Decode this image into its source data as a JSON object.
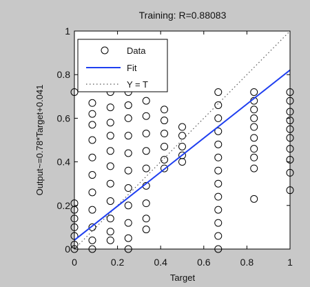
{
  "chart_data": {
    "type": "scatter",
    "title": "Training: R=0.88083",
    "xlabel": "Target",
    "ylabel": "Output~=0.78*Target+0.041",
    "xlim": [
      0,
      1
    ],
    "ylim": [
      0,
      1
    ],
    "x_ticks": [
      "0",
      "0.2",
      "0.4",
      "0.6",
      "0.8",
      "1"
    ],
    "y_ticks": [
      "0",
      "0.2",
      "0.4",
      "0.6",
      "0.8",
      "1"
    ],
    "x_tick_values": [
      0,
      0.2,
      0.4,
      0.6,
      0.8,
      1
    ],
    "y_tick_values": [
      0,
      0.2,
      0.4,
      0.6,
      0.8,
      1
    ],
    "grid": false,
    "legend_position": "top-left",
    "legend": {
      "data_label": "Data",
      "fit_label": "Fit",
      "identity_label": "Y = T"
    },
    "fit_line": {
      "slope": 0.78,
      "intercept": 0.041,
      "color": "#1f3ff0"
    },
    "identity_line": {
      "slope": 1,
      "intercept": 0,
      "color": "#555555"
    },
    "series": [
      {
        "name": "Data",
        "marker": "circle-open",
        "color": "#000000",
        "points": [
          {
            "x": 0.0,
            "y": 0.72
          },
          {
            "x": 0.0,
            "y": 0.21
          },
          {
            "x": 0.0,
            "y": 0.18
          },
          {
            "x": 0.0,
            "y": 0.14
          },
          {
            "x": 0.0,
            "y": 0.1
          },
          {
            "x": 0.0,
            "y": 0.06
          },
          {
            "x": 0.0,
            "y": 0.02
          },
          {
            "x": 0.0,
            "y": 0.0
          },
          {
            "x": 0.083,
            "y": 0.67
          },
          {
            "x": 0.083,
            "y": 0.62
          },
          {
            "x": 0.083,
            "y": 0.57
          },
          {
            "x": 0.083,
            "y": 0.5
          },
          {
            "x": 0.083,
            "y": 0.42
          },
          {
            "x": 0.083,
            "y": 0.34
          },
          {
            "x": 0.083,
            "y": 0.26
          },
          {
            "x": 0.083,
            "y": 0.18
          },
          {
            "x": 0.083,
            "y": 0.1
          },
          {
            "x": 0.083,
            "y": 0.04
          },
          {
            "x": 0.083,
            "y": 0.0
          },
          {
            "x": 0.167,
            "y": 0.72
          },
          {
            "x": 0.167,
            "y": 0.65
          },
          {
            "x": 0.167,
            "y": 0.58
          },
          {
            "x": 0.167,
            "y": 0.52
          },
          {
            "x": 0.167,
            "y": 0.45
          },
          {
            "x": 0.167,
            "y": 0.38
          },
          {
            "x": 0.167,
            "y": 0.3
          },
          {
            "x": 0.167,
            "y": 0.22
          },
          {
            "x": 0.167,
            "y": 0.14
          },
          {
            "x": 0.167,
            "y": 0.08
          },
          {
            "x": 0.167,
            "y": 0.04
          },
          {
            "x": 0.25,
            "y": 0.72
          },
          {
            "x": 0.25,
            "y": 0.66
          },
          {
            "x": 0.25,
            "y": 0.6
          },
          {
            "x": 0.25,
            "y": 0.52
          },
          {
            "x": 0.25,
            "y": 0.44
          },
          {
            "x": 0.25,
            "y": 0.36
          },
          {
            "x": 0.25,
            "y": 0.28
          },
          {
            "x": 0.25,
            "y": 0.2
          },
          {
            "x": 0.25,
            "y": 0.12
          },
          {
            "x": 0.25,
            "y": 0.05
          },
          {
            "x": 0.25,
            "y": 0.0
          },
          {
            "x": 0.333,
            "y": 0.68
          },
          {
            "x": 0.333,
            "y": 0.61
          },
          {
            "x": 0.333,
            "y": 0.53
          },
          {
            "x": 0.333,
            "y": 0.45
          },
          {
            "x": 0.333,
            "y": 0.37
          },
          {
            "x": 0.333,
            "y": 0.29
          },
          {
            "x": 0.333,
            "y": 0.21
          },
          {
            "x": 0.333,
            "y": 0.14
          },
          {
            "x": 0.333,
            "y": 0.09
          },
          {
            "x": 0.417,
            "y": 0.64
          },
          {
            "x": 0.417,
            "y": 0.59
          },
          {
            "x": 0.417,
            "y": 0.53
          },
          {
            "x": 0.417,
            "y": 0.47
          },
          {
            "x": 0.417,
            "y": 0.41
          },
          {
            "x": 0.417,
            "y": 0.37
          },
          {
            "x": 0.5,
            "y": 0.56
          },
          {
            "x": 0.5,
            "y": 0.52
          },
          {
            "x": 0.5,
            "y": 0.47
          },
          {
            "x": 0.5,
            "y": 0.43
          },
          {
            "x": 0.5,
            "y": 0.4
          },
          {
            "x": 0.667,
            "y": 0.72
          },
          {
            "x": 0.667,
            "y": 0.66
          },
          {
            "x": 0.667,
            "y": 0.6
          },
          {
            "x": 0.667,
            "y": 0.54
          },
          {
            "x": 0.667,
            "y": 0.48
          },
          {
            "x": 0.667,
            "y": 0.42
          },
          {
            "x": 0.667,
            "y": 0.36
          },
          {
            "x": 0.667,
            "y": 0.3
          },
          {
            "x": 0.667,
            "y": 0.24
          },
          {
            "x": 0.667,
            "y": 0.18
          },
          {
            "x": 0.667,
            "y": 0.12
          },
          {
            "x": 0.667,
            "y": 0.06
          },
          {
            "x": 0.667,
            "y": 0.0
          },
          {
            "x": 0.833,
            "y": 0.72
          },
          {
            "x": 0.833,
            "y": 0.68
          },
          {
            "x": 0.833,
            "y": 0.64
          },
          {
            "x": 0.833,
            "y": 0.6
          },
          {
            "x": 0.833,
            "y": 0.56
          },
          {
            "x": 0.833,
            "y": 0.51
          },
          {
            "x": 0.833,
            "y": 0.46
          },
          {
            "x": 0.833,
            "y": 0.42
          },
          {
            "x": 0.833,
            "y": 0.37
          },
          {
            "x": 0.833,
            "y": 0.23
          },
          {
            "x": 1.0,
            "y": 0.72
          },
          {
            "x": 1.0,
            "y": 0.68
          },
          {
            "x": 1.0,
            "y": 0.63
          },
          {
            "x": 1.0,
            "y": 0.59
          },
          {
            "x": 1.0,
            "y": 0.55
          },
          {
            "x": 1.0,
            "y": 0.51
          },
          {
            "x": 1.0,
            "y": 0.46
          },
          {
            "x": 1.0,
            "y": 0.41
          },
          {
            "x": 1.0,
            "y": 0.35
          },
          {
            "x": 1.0,
            "y": 0.27
          }
        ]
      }
    ]
  }
}
